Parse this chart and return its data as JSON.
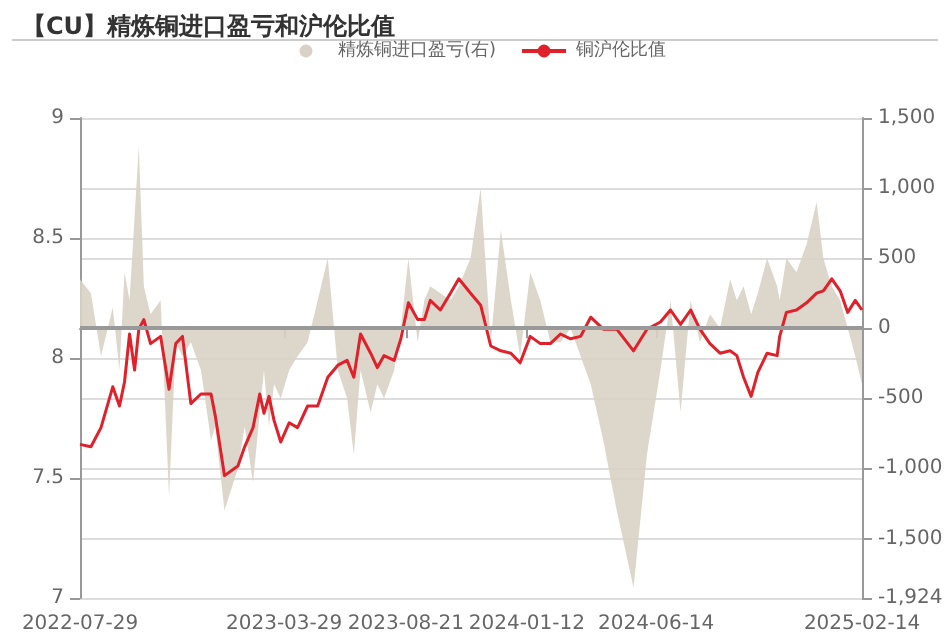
{
  "chart_data": {
    "type": "line",
    "title": "【CU】精炼铜进口盈亏和沪伦比值",
    "x": [
      "2022-07-29",
      "2022-08-11",
      "2022-08-23",
      "2022-09-06",
      "2022-09-14",
      "2022-09-20",
      "2022-09-26",
      "2022-10-02",
      "2022-10-07",
      "2022-10-13",
      "2022-10-21",
      "2022-11-02",
      "2022-11-12",
      "2022-11-20",
      "2022-11-28",
      "2022-12-08",
      "2022-12-20",
      "2023-01-01",
      "2023-01-06",
      "2023-01-17",
      "2023-02-02",
      "2023-02-10",
      "2023-02-20",
      "2023-02-28",
      "2023-03-05",
      "2023-03-11",
      "2023-03-17",
      "2023-03-25",
      "2023-04-04",
      "2023-04-14",
      "2023-04-26",
      "2023-05-08",
      "2023-05-20",
      "2023-06-01",
      "2023-06-12",
      "2023-06-20",
      "2023-06-28",
      "2023-07-10",
      "2023-07-18",
      "2023-07-26",
      "2023-08-07",
      "2023-08-15",
      "2023-08-24",
      "2023-09-04",
      "2023-09-12",
      "2023-09-19",
      "2023-10-01",
      "2023-10-13",
      "2023-10-23",
      "2023-11-06",
      "2023-11-18",
      "2023-11-30",
      "2023-12-12",
      "2023-12-24",
      "2024-01-04",
      "2024-01-16",
      "2024-01-28",
      "2024-02-09",
      "2024-02-21",
      "2024-03-04",
      "2024-03-16",
      "2024-03-28",
      "2024-04-12",
      "2024-04-28",
      "2024-05-18",
      "2024-06-03",
      "2024-06-19",
      "2024-07-01",
      "2024-07-13",
      "2024-07-25",
      "2024-08-05",
      "2024-08-17",
      "2024-08-29",
      "2024-09-10",
      "2024-09-18",
      "2024-09-26",
      "2024-10-05",
      "2024-10-13",
      "2024-10-24",
      "2024-11-05",
      "2024-11-08",
      "2024-11-16",
      "2024-11-28",
      "2024-12-10",
      "2024-12-22",
      "2024-12-30",
      "2025-01-09",
      "2025-01-19",
      "2025-01-28",
      "2025-02-06",
      "2025-02-14"
    ],
    "series": [
      {
        "name": "精炼铜进口盈亏(右)",
        "type": "area",
        "axis": "y2",
        "color": "#d9d1c5",
        "values": [
          350,
          250,
          -200,
          150,
          -300,
          400,
          200,
          800,
          1300,
          300,
          100,
          200,
          -1200,
          -100,
          -200,
          -100,
          -300,
          -800,
          -700,
          -1300,
          -1000,
          -700,
          -1100,
          -600,
          -300,
          -700,
          -400,
          -500,
          -300,
          -200,
          -100,
          200,
          500,
          -300,
          -500,
          -900,
          -300,
          -600,
          -400,
          -500,
          -300,
          0,
          500,
          -100,
          200,
          300,
          250,
          200,
          300,
          500,
          1000,
          -100,
          700,
          200,
          -200,
          400,
          200,
          -100,
          -100,
          0,
          -200,
          -400,
          -800,
          -1300,
          -1850,
          -900,
          -300,
          200,
          -600,
          200,
          -100,
          100,
          0,
          350,
          200,
          300,
          100,
          250,
          500,
          300,
          200,
          500,
          400,
          600,
          900,
          500,
          300,
          200,
          0,
          -200,
          -400
        ]
      },
      {
        "name": "铜沪伦比值",
        "color": "#e0202a",
        "values": [
          7.64,
          7.63,
          7.71,
          7.88,
          7.8,
          7.9,
          8.1,
          7.95,
          8.12,
          8.16,
          8.06,
          8.09,
          7.87,
          8.06,
          8.09,
          7.81,
          7.85,
          7.85,
          7.76,
          7.51,
          7.55,
          7.63,
          7.71,
          7.85,
          7.77,
          7.84,
          7.74,
          7.65,
          7.73,
          7.71,
          7.8,
          7.8,
          7.92,
          7.97,
          7.99,
          7.92,
          8.1,
          8.02,
          7.96,
          8.01,
          7.99,
          8.08,
          8.23,
          8.16,
          8.16,
          8.24,
          8.2,
          8.27,
          8.33,
          8.27,
          8.22,
          8.05,
          8.03,
          8.02,
          7.98,
          8.09,
          8.06,
          8.06,
          8.1,
          8.08,
          8.09,
          8.17,
          8.12,
          8.12,
          8.03,
          8.12,
          8.15,
          8.2,
          8.14,
          8.2,
          8.12,
          8.06,
          8.02,
          8.03,
          8.01,
          7.92,
          7.84,
          7.94,
          8.02,
          8.01,
          8.09,
          8.19,
          8.2,
          8.23,
          8.27,
          8.28,
          8.33,
          8.28,
          8.19,
          8.24,
          8.2
        ]
      }
    ],
    "ylim": [
      7,
      9
    ],
    "yticks": [
      7,
      7.5,
      8,
      8.5,
      9
    ],
    "y2lim": [
      -1924,
      1500
    ],
    "y2ticks": [
      {
        "value": 1500,
        "label": "1,500"
      },
      {
        "value": 1000,
        "label": "1,000"
      },
      500,
      0,
      -500,
      {
        "value": -1000,
        "label": "-1,000"
      },
      {
        "value": -1500,
        "label": "-1,500"
      },
      {
        "value": -1924,
        "label": "-1,924"
      }
    ],
    "xlim": [
      "2022-07-29",
      "2025-02-14"
    ],
    "xticks": [
      "2022-07-29",
      "2023-03-29",
      "2023-08-21",
      "2024-01-12",
      "2024-06-14",
      "2025-02-14"
    ],
    "ref_lines": [
      {
        "axis": "y2",
        "value": 0,
        "color": "#999999"
      }
    ],
    "grid": "y",
    "legend": "top"
  }
}
